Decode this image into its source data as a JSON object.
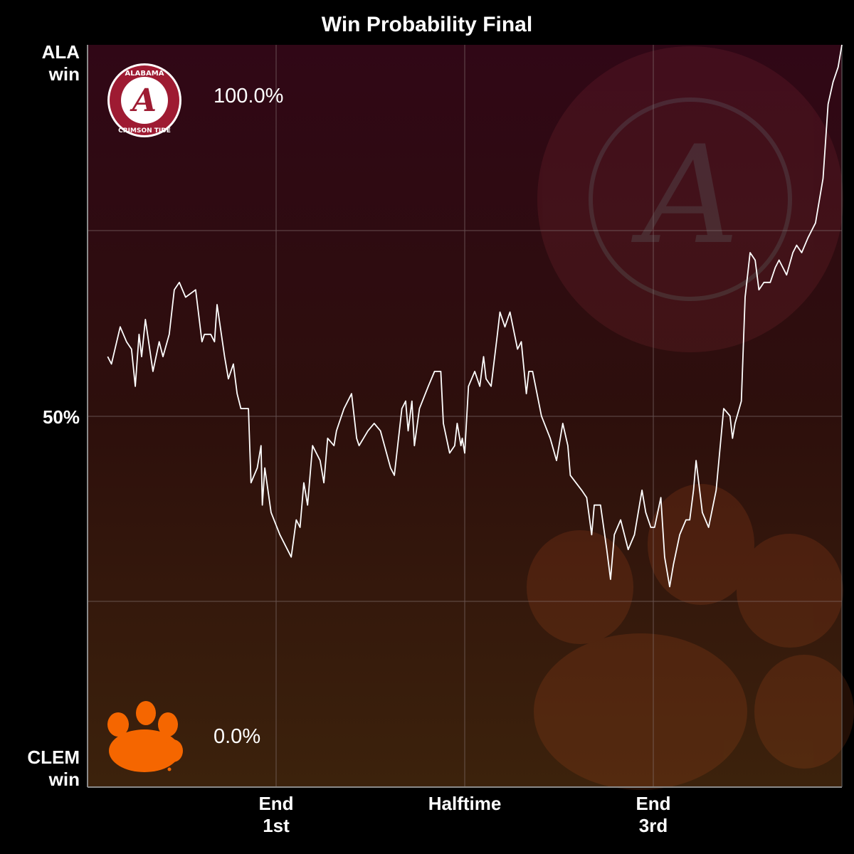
{
  "chart_data": {
    "type": "line",
    "title": "Win Probability  Final",
    "ylim": [
      0,
      100
    ],
    "xlim": [
      0,
      60
    ],
    "y_axis": {
      "top_label": "ALA\nwin",
      "mid_label": "50%",
      "bottom_label": "CLEM\nwin"
    },
    "x_ticks": [
      {
        "x": 15,
        "label": "End\n1st"
      },
      {
        "x": 30,
        "label": "Halftime"
      },
      {
        "x": 45,
        "label": "End\n3rd"
      }
    ],
    "grid": true,
    "team_top": {
      "name": "Alabama Crimson Tide",
      "value_label": "100.0%",
      "logo_text_top": "ALABAMA",
      "logo_text_bottom": "CRIMSON TIDE",
      "logo_letter": "A",
      "color": "#9e1b32"
    },
    "team_bottom": {
      "name": "Clemson Tigers",
      "value_label": "0.0%",
      "color": "#f56600"
    },
    "series": [
      {
        "color": "#ffffff",
        "points": [
          [
            1.6,
            58
          ],
          [
            1.9,
            57
          ],
          [
            2.6,
            62
          ],
          [
            3.1,
            60
          ],
          [
            3.5,
            59
          ],
          [
            3.8,
            54
          ],
          [
            4.1,
            61
          ],
          [
            4.3,
            58
          ],
          [
            4.6,
            63
          ],
          [
            5.2,
            56
          ],
          [
            5.7,
            60
          ],
          [
            6.0,
            58
          ],
          [
            6.5,
            61
          ],
          [
            6.9,
            67
          ],
          [
            7.3,
            68
          ],
          [
            7.8,
            66
          ],
          [
            8.6,
            67
          ],
          [
            9.1,
            60
          ],
          [
            9.3,
            61
          ],
          [
            9.8,
            61
          ],
          [
            10.1,
            60
          ],
          [
            10.3,
            65
          ],
          [
            10.9,
            58
          ],
          [
            11.2,
            55
          ],
          [
            11.6,
            57
          ],
          [
            11.9,
            53
          ],
          [
            12.2,
            51
          ],
          [
            12.8,
            51
          ],
          [
            13.0,
            41
          ],
          [
            13.5,
            43
          ],
          [
            13.8,
            46
          ],
          [
            13.9,
            38
          ],
          [
            14.1,
            43
          ],
          [
            14.6,
            37
          ],
          [
            15.3,
            34
          ],
          [
            16.2,
            31
          ],
          [
            16.6,
            36
          ],
          [
            16.9,
            35
          ],
          [
            17.2,
            41
          ],
          [
            17.5,
            38
          ],
          [
            17.9,
            46
          ],
          [
            18.5,
            44
          ],
          [
            18.8,
            41
          ],
          [
            19.1,
            47
          ],
          [
            19.6,
            46
          ],
          [
            19.8,
            48
          ],
          [
            20.0,
            49
          ],
          [
            20.4,
            51
          ],
          [
            21.0,
            53
          ],
          [
            21.4,
            47
          ],
          [
            21.6,
            46
          ],
          [
            22.3,
            48
          ],
          [
            22.8,
            49
          ],
          [
            23.3,
            48
          ],
          [
            24.1,
            43
          ],
          [
            24.4,
            42
          ],
          [
            25.0,
            51
          ],
          [
            25.3,
            52
          ],
          [
            25.5,
            48
          ],
          [
            25.8,
            52
          ],
          [
            26.0,
            46
          ],
          [
            26.4,
            51
          ],
          [
            27.1,
            54
          ],
          [
            27.6,
            56
          ],
          [
            28.1,
            56
          ],
          [
            28.3,
            49
          ],
          [
            28.8,
            45
          ],
          [
            29.2,
            46
          ],
          [
            29.4,
            49
          ],
          [
            29.7,
            46
          ],
          [
            29.8,
            47
          ],
          [
            30.0,
            45
          ],
          [
            30.3,
            54
          ],
          [
            30.8,
            56
          ],
          [
            31.2,
            54
          ],
          [
            31.5,
            58
          ],
          [
            31.7,
            55
          ],
          [
            32.1,
            54
          ],
          [
            32.6,
            61
          ],
          [
            32.8,
            64
          ],
          [
            33.2,
            62
          ],
          [
            33.6,
            64
          ],
          [
            34.2,
            59
          ],
          [
            34.5,
            60
          ],
          [
            34.9,
            53
          ],
          [
            35.1,
            56
          ],
          [
            35.4,
            56
          ],
          [
            36.1,
            50
          ],
          [
            36.8,
            47
          ],
          [
            37.3,
            44
          ],
          [
            37.8,
            49
          ],
          [
            38.2,
            46
          ],
          [
            38.4,
            42
          ],
          [
            39.3,
            40
          ],
          [
            39.7,
            39
          ],
          [
            40.1,
            34
          ],
          [
            40.3,
            38
          ],
          [
            40.8,
            38
          ],
          [
            41.3,
            32
          ],
          [
            41.6,
            28
          ],
          [
            41.9,
            34
          ],
          [
            42.4,
            36
          ],
          [
            43.0,
            32
          ],
          [
            43.5,
            34
          ],
          [
            44.1,
            40
          ],
          [
            44.4,
            37
          ],
          [
            44.8,
            35
          ],
          [
            45.1,
            35
          ],
          [
            45.6,
            39
          ],
          [
            45.9,
            31
          ],
          [
            46.3,
            27
          ],
          [
            46.6,
            30
          ],
          [
            47.1,
            34
          ],
          [
            47.6,
            36
          ],
          [
            47.9,
            36
          ],
          [
            48.2,
            40
          ],
          [
            48.4,
            44
          ],
          [
            48.9,
            37
          ],
          [
            49.4,
            35
          ],
          [
            50.0,
            40
          ],
          [
            50.6,
            51
          ],
          [
            51.1,
            50
          ],
          [
            51.3,
            47
          ],
          [
            51.5,
            49
          ],
          [
            52.0,
            52
          ],
          [
            52.3,
            66
          ],
          [
            52.7,
            72
          ],
          [
            53.1,
            71
          ],
          [
            53.4,
            67
          ],
          [
            53.8,
            68
          ],
          [
            54.3,
            68
          ],
          [
            54.7,
            70
          ],
          [
            55.0,
            71
          ],
          [
            55.3,
            70
          ],
          [
            55.6,
            69
          ],
          [
            56.1,
            72
          ],
          [
            56.4,
            73
          ],
          [
            56.8,
            72
          ],
          [
            57.3,
            74
          ],
          [
            57.9,
            76
          ],
          [
            58.5,
            82
          ],
          [
            58.9,
            92
          ],
          [
            59.3,
            95
          ],
          [
            59.7,
            97
          ],
          [
            60.0,
            100
          ]
        ]
      }
    ]
  }
}
